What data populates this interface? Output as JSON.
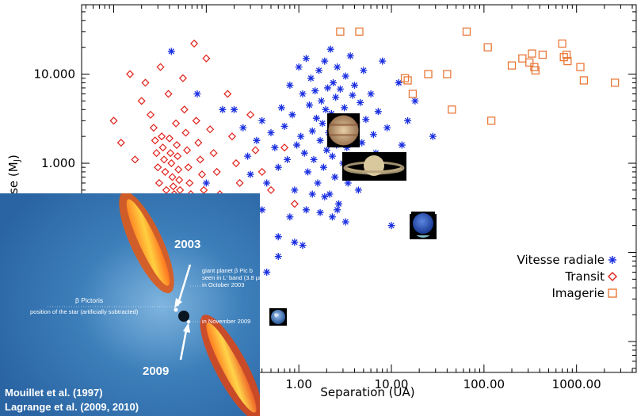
{
  "chart_data": {
    "type": "scatter",
    "title": "",
    "xlabel": "Separation (UA)",
    "ylabel": "Masse (M",
    "ylabel_subscript": "J",
    "ylabel_close": ")",
    "x_scale": "log",
    "y_scale": "log",
    "xlim": [
      0.0045,
      4500
    ],
    "ylim": [
      0.0045,
      60
    ],
    "x_ticks": [
      {
        "value": 1,
        "label": "1.00"
      },
      {
        "value": 10,
        "label": "10.00"
      },
      {
        "value": 100,
        "label": "100.00"
      },
      {
        "value": 1000,
        "label": "1000.00"
      }
    ],
    "y_ticks": [
      {
        "value": 1,
        "label": "1.000"
      },
      {
        "value": 10,
        "label": "10.000"
      }
    ],
    "legend_position": "right",
    "series": [
      {
        "name": "Vitesse radiale",
        "marker": "asterisk",
        "color": "#1a2fe0",
        "points": [
          [
            0.042,
            18
          ],
          [
            0.08,
            6
          ],
          [
            0.15,
            4
          ],
          [
            0.2,
            4
          ],
          [
            0.25,
            2.5
          ],
          [
            0.28,
            1.2
          ],
          [
            0.3,
            0.75
          ],
          [
            0.35,
            1.8
          ],
          [
            0.4,
            3
          ],
          [
            0.45,
            0.6
          ],
          [
            0.5,
            2.2
          ],
          [
            0.55,
            1.5
          ],
          [
            0.6,
            0.9
          ],
          [
            0.65,
            4.2
          ],
          [
            0.7,
            2.6
          ],
          [
            0.75,
            1.1
          ],
          [
            0.8,
            7.5
          ],
          [
            0.85,
            3.5
          ],
          [
            0.9,
            0.5
          ],
          [
            0.95,
            1.6
          ],
          [
            1.0,
            12
          ],
          [
            1.05,
            2
          ],
          [
            1.1,
            6
          ],
          [
            1.15,
            1.3
          ],
          [
            1.2,
            15
          ],
          [
            1.25,
            0.8
          ],
          [
            1.3,
            4.5
          ],
          [
            1.35,
            9
          ],
          [
            1.4,
            2.3
          ],
          [
            1.45,
            1.1
          ],
          [
            1.5,
            6.5
          ],
          [
            1.55,
            3.2
          ],
          [
            1.6,
            0.6
          ],
          [
            1.65,
            11
          ],
          [
            1.7,
            1.8
          ],
          [
            1.75,
            5
          ],
          [
            1.8,
            2.8
          ],
          [
            1.85,
            0.9
          ],
          [
            1.9,
            14
          ],
          [
            1.95,
            4
          ],
          [
            2.0,
            1.4
          ],
          [
            2.05,
            7
          ],
          [
            2.1,
            2.2
          ],
          [
            2.15,
            0.45
          ],
          [
            2.2,
            19
          ],
          [
            2.25,
            3.6
          ],
          [
            2.3,
            1.2
          ],
          [
            2.35,
            8
          ],
          [
            2.4,
            2.6
          ],
          [
            2.45,
            0.7
          ],
          [
            2.5,
            5.5
          ],
          [
            2.55,
            1.6
          ],
          [
            2.6,
            12
          ],
          [
            2.65,
            3
          ],
          [
            2.7,
            0.35
          ],
          [
            2.8,
            6.8
          ],
          [
            2.9,
            2
          ],
          [
            3.0,
            1
          ],
          [
            3.1,
            4.2
          ],
          [
            3.2,
            9.5
          ],
          [
            3.3,
            1.5
          ],
          [
            3.4,
            0.6
          ],
          [
            3.5,
            3.3
          ],
          [
            3.6,
            16
          ],
          [
            3.7,
            2.4
          ],
          [
            3.8,
            5.8
          ],
          [
            3.9,
            1.1
          ],
          [
            4.0,
            7.5
          ],
          [
            4.2,
            2.9
          ],
          [
            4.4,
            0.5
          ],
          [
            4.6,
            4.8
          ],
          [
            4.8,
            1.7
          ],
          [
            5.0,
            11
          ],
          [
            5.3,
            3.1
          ],
          [
            5.6,
            0.8
          ],
          [
            6.0,
            6
          ],
          [
            6.4,
            2.1
          ],
          [
            6.8,
            1.3
          ],
          [
            7.2,
            3.8
          ],
          [
            8.0,
            14
          ],
          [
            9.0,
            2.5
          ],
          [
            10.0,
            0.2
          ],
          [
            1.2,
            0.3
          ],
          [
            1.4,
            0.45
          ],
          [
            1.7,
            0.28
          ],
          [
            1.9,
            0.42
          ],
          [
            2.3,
            0.25
          ],
          [
            2.6,
            0.3
          ],
          [
            3.2,
            0.22
          ],
          [
            0.8,
            0.25
          ],
          [
            0.6,
            0.15
          ],
          [
            0.4,
            0.3
          ],
          [
            0.3,
            0.2
          ],
          [
            0.25,
            0.18
          ],
          [
            0.18,
            0.22
          ],
          [
            0.9,
            0.13
          ],
          [
            1.1,
            0.12
          ],
          [
            12,
            8
          ],
          [
            15,
            3
          ],
          [
            18,
            5
          ],
          [
            13,
            1.6
          ],
          [
            28,
            2
          ],
          [
            0.12,
            0.35
          ],
          [
            0.1,
            0.6
          ],
          [
            0.6,
            0.09
          ],
          [
            0.45,
            0.06
          ]
        ]
      },
      {
        "name": "Transit",
        "marker": "diamond",
        "color": "#e0201a",
        "points": [
          [
            0.01,
            3
          ],
          [
            0.012,
            1.7
          ],
          [
            0.015,
            10
          ],
          [
            0.017,
            1.1
          ],
          [
            0.02,
            5
          ],
          [
            0.022,
            8
          ],
          [
            0.025,
            3.5
          ],
          [
            0.027,
            2.5
          ],
          [
            0.028,
            1.8
          ],
          [
            0.029,
            1.3
          ],
          [
            0.03,
            0.9
          ],
          [
            0.031,
            0.6
          ],
          [
            0.032,
            12
          ],
          [
            0.033,
            2
          ],
          [
            0.034,
            1.5
          ],
          [
            0.035,
            1.1
          ],
          [
            0.036,
            0.8
          ],
          [
            0.037,
            0.5
          ],
          [
            0.038,
            0.4
          ],
          [
            0.039,
            6
          ],
          [
            0.04,
            1.9
          ],
          [
            0.041,
            1.3
          ],
          [
            0.042,
            1
          ],
          [
            0.043,
            0.7
          ],
          [
            0.044,
            0.55
          ],
          [
            0.045,
            0.45
          ],
          [
            0.046,
            0.35
          ],
          [
            0.047,
            2.8
          ],
          [
            0.048,
            1.6
          ],
          [
            0.049,
            1.2
          ],
          [
            0.05,
            0.85
          ],
          [
            0.051,
            0.65
          ],
          [
            0.052,
            0.5
          ],
          [
            0.053,
            0.4
          ],
          [
            0.055,
            0.3
          ],
          [
            0.056,
            9
          ],
          [
            0.058,
            4
          ],
          [
            0.06,
            2.2
          ],
          [
            0.062,
            1.4
          ],
          [
            0.064,
            0.9
          ],
          [
            0.066,
            0.6
          ],
          [
            0.068,
            0.45
          ],
          [
            0.07,
            0.35
          ],
          [
            0.072,
            0.25
          ],
          [
            0.074,
            22
          ],
          [
            0.078,
            3
          ],
          [
            0.082,
            1.7
          ],
          [
            0.086,
            1.1
          ],
          [
            0.09,
            0.75
          ],
          [
            0.094,
            0.5
          ],
          [
            0.1,
            15
          ],
          [
            0.11,
            2.4
          ],
          [
            0.12,
            1.3
          ],
          [
            0.13,
            0.8
          ],
          [
            0.14,
            0.45
          ],
          [
            0.15,
            0.3
          ],
          [
            0.17,
            6
          ],
          [
            0.19,
            2
          ],
          [
            0.21,
            1
          ],
          [
            0.23,
            0.6
          ],
          [
            0.26,
            0.4
          ],
          [
            0.3,
            3.5
          ],
          [
            0.34,
            1.4
          ],
          [
            0.4,
            0.8
          ],
          [
            0.5,
            0.5
          ],
          [
            0.7,
            1.5
          ],
          [
            0.9,
            0.35
          ],
          [
            0.12,
            0.2
          ]
        ]
      },
      {
        "name": "Imagerie",
        "marker": "square",
        "color": "#e8793a",
        "points": [
          [
            2.8,
            30
          ],
          [
            4.5,
            30
          ],
          [
            14,
            9
          ],
          [
            15,
            8.5
          ],
          [
            17,
            6
          ],
          [
            25,
            10
          ],
          [
            40,
            10
          ],
          [
            45,
            4
          ],
          [
            65,
            30
          ],
          [
            110,
            20
          ],
          [
            120,
            3
          ],
          [
            200,
            12.5
          ],
          [
            260,
            15
          ],
          [
            310,
            13.5
          ],
          [
            330,
            17
          ],
          [
            350,
            12
          ],
          [
            360,
            11
          ],
          [
            430,
            16.5
          ],
          [
            700,
            22
          ],
          [
            730,
            15.5
          ],
          [
            780,
            16.5
          ],
          [
            800,
            14
          ],
          [
            1100,
            12
          ],
          [
            1200,
            8.5
          ],
          [
            2600,
            8
          ]
        ]
      }
    ]
  },
  "planet_images": [
    {
      "name": "Jupiter",
      "icon": "jupiter-icon"
    },
    {
      "name": "Saturne",
      "icon": "saturn-icon"
    },
    {
      "name": "Uranus",
      "icon": "uranus-icon"
    },
    {
      "name": "Neptune",
      "icon": "neptune-icon"
    },
    {
      "name": "Terre",
      "icon": "earth-icon"
    }
  ],
  "inset": {
    "year_2003": "2003",
    "year_2009": "2009",
    "planet_note_line1": "giant planet β Pic b",
    "planet_note_line2": "seen in L' band (3.8 µm)",
    "planet_note_line3": "in October 2003",
    "planet_note_2009": "in November 2009",
    "star_name": "β Pictoris",
    "star_note": "position of the star (artificially subtracted)",
    "ref_1": "Mouillet et al. (1997)",
    "ref_2": "Lagrange et al. (2009, 2010)"
  }
}
